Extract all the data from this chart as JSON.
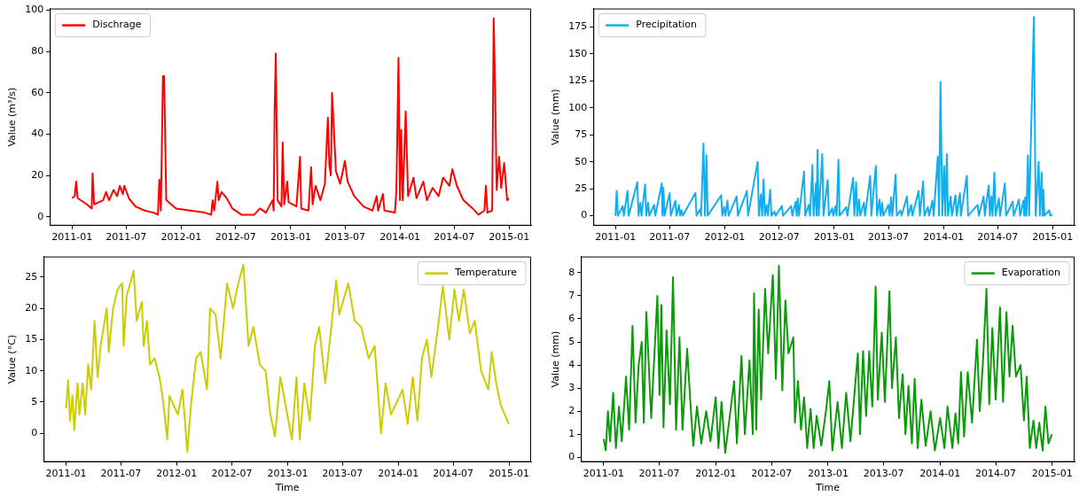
{
  "chart_data": [
    {
      "type": "line",
      "ylabel": "Value (m³/s)",
      "legend": "top left",
      "xlim": [
        "2010-10-19",
        "2015-03-15"
      ],
      "ylim": [
        -4.3,
        100.8
      ],
      "xticks": [
        "2011-01",
        "2011-07",
        "2012-01",
        "2012-07",
        "2013-01",
        "2013-07",
        "2014-01",
        "2014-07",
        "2015-01"
      ],
      "yticks": [
        0,
        20,
        40,
        60,
        80,
        100
      ],
      "x": [
        "2011-01-01",
        "2011-01-10",
        "2011-01-15",
        "2011-01-20",
        "2011-02-20",
        "2011-03-08",
        "2011-03-11",
        "2011-03-16",
        "2011-04-15",
        "2011-04-25",
        "2011-05-05",
        "2011-05-20",
        "2011-06-01",
        "2011-06-10",
        "2011-06-20",
        "2011-06-25",
        "2011-07-10",
        "2011-08-01",
        "2011-09-01",
        "2011-10-01",
        "2011-10-15",
        "2011-10-20",
        "2011-10-25",
        "2011-11-01",
        "2011-11-05",
        "2011-11-12",
        "2011-12-15",
        "2012-02-01",
        "2012-03-20",
        "2012-04-10",
        "2012-04-15",
        "2012-04-20",
        "2012-05-01",
        "2012-05-05",
        "2012-05-15",
        "2012-06-01",
        "2012-06-20",
        "2012-07-20",
        "2012-09-01",
        "2012-09-20",
        "2012-10-10",
        "2012-11-01",
        "2012-11-05",
        "2012-11-08",
        "2012-11-12",
        "2012-11-18",
        "2012-12-01",
        "2012-12-05",
        "2012-12-10",
        "2012-12-20",
        "2012-12-25",
        "2013-01-20",
        "2013-02-01",
        "2013-02-05",
        "2013-03-01",
        "2013-03-10",
        "2013-03-15",
        "2013-03-25",
        "2013-04-10",
        "2013-04-25",
        "2013-05-05",
        "2013-05-10",
        "2013-05-15",
        "2013-05-19",
        "2013-06-01",
        "2013-06-15",
        "2013-07-01",
        "2013-07-10",
        "2013-08-01",
        "2013-09-01",
        "2013-10-01",
        "2013-10-15",
        "2013-10-20",
        "2013-11-05",
        "2013-11-10",
        "2013-12-15",
        "2013-12-20",
        "2013-12-27",
        "2014-01-01",
        "2014-01-05",
        "2014-01-10",
        "2014-01-20",
        "2014-01-28",
        "2014-02-15",
        "2014-02-25",
        "2014-03-20",
        "2014-04-01",
        "2014-04-20",
        "2014-05-10",
        "2014-05-25",
        "2014-06-15",
        "2014-06-25",
        "2014-07-10",
        "2014-08-01",
        "2014-09-01",
        "2014-09-20",
        "2014-10-10",
        "2014-10-15",
        "2014-10-20",
        "2014-11-05",
        "2014-11-10",
        "2014-11-15",
        "2014-11-20",
        "2014-11-28",
        "2014-12-05",
        "2014-12-15",
        "2014-12-25",
        "2014-12-31"
      ],
      "series": [
        {
          "name": "Dischrage",
          "color": "#ff0000",
          "values": [
            9,
            10,
            17,
            9,
            6,
            4,
            21,
            6,
            8,
            12,
            8,
            13,
            10,
            15,
            11,
            15,
            9,
            5,
            3,
            2,
            1,
            18,
            3,
            68,
            68,
            8,
            4,
            3,
            2,
            1,
            8,
            3,
            17,
            8,
            12,
            9,
            4,
            1,
            1,
            4,
            2,
            8,
            3,
            51,
            79,
            8,
            5,
            36,
            6,
            17,
            7,
            5,
            29,
            4,
            3,
            24,
            6,
            15,
            8,
            16,
            48,
            25,
            20,
            60,
            22,
            16,
            27,
            17,
            10,
            5,
            3,
            10,
            3,
            11,
            3,
            2,
            13,
            77,
            8,
            42,
            8,
            51,
            10,
            19,
            9,
            17,
            8,
            14,
            10,
            19,
            15,
            23,
            15,
            8,
            4,
            1,
            3,
            15,
            2,
            3,
            96,
            61,
            13,
            29,
            14,
            26,
            8,
            9
          ]
        }
      ]
    },
    {
      "type": "line",
      "ylabel": "Value (mm)",
      "legend": "top left",
      "xlim": [
        "2010-10-19",
        "2015-03-15"
      ],
      "ylim": [
        -9.2,
        192
      ],
      "xticks": [
        "2011-01",
        "2011-07",
        "2012-01",
        "2012-07",
        "2013-01",
        "2013-07",
        "2014-01",
        "2014-07",
        "2015-01"
      ],
      "yticks": [
        0,
        25,
        50,
        75,
        100,
        125,
        150,
        175
      ],
      "x": [
        "2011-01-01",
        "2011-01-05",
        "2011-01-09",
        "2011-01-25",
        "2011-01-29",
        "2011-02-10",
        "2011-02-14",
        "2011-03-15",
        "2011-03-19",
        "2011-03-25",
        "2011-03-29",
        "2011-04-10",
        "2011-04-14",
        "2011-04-20",
        "2011-04-24",
        "2011-05-10",
        "2011-05-14",
        "2011-06-05",
        "2011-06-07",
        "2011-06-10",
        "2011-06-14",
        "2011-07-01",
        "2011-07-05",
        "2011-07-20",
        "2011-07-24",
        "2011-08-01",
        "2011-08-05",
        "2011-08-10",
        "2011-08-14",
        "2011-09-25",
        "2011-09-29",
        "2011-10-10",
        "2011-10-14",
        "2011-10-22",
        "2011-10-27",
        "2011-11-01",
        "2011-11-05",
        "2011-12-20",
        "2011-12-24",
        "2011-12-30",
        "2012-01-03",
        "2012-01-10",
        "2012-01-14",
        "2012-02-10",
        "2012-02-14",
        "2012-03-15",
        "2012-03-19",
        "2012-04-20",
        "2012-04-24",
        "2012-05-01",
        "2012-05-05",
        "2012-05-10",
        "2012-05-14",
        "2012-05-20",
        "2012-05-24",
        "2012-06-01",
        "2012-06-05",
        "2012-06-15",
        "2012-06-19",
        "2012-07-10",
        "2012-07-14",
        "2012-08-10",
        "2012-08-14",
        "2012-08-25",
        "2012-08-28",
        "2012-09-01",
        "2012-09-05",
        "2012-09-22",
        "2012-09-26",
        "2012-10-08",
        "2012-10-12",
        "2012-10-20",
        "2012-10-24",
        "2012-11-01",
        "2012-11-03",
        "2012-11-06",
        "2012-11-10",
        "2012-11-22",
        "2012-11-26",
        "2012-12-10",
        "2012-12-14",
        "2012-12-25",
        "2012-12-29",
        "2013-01-05",
        "2013-01-09",
        "2013-01-15",
        "2013-01-19",
        "2013-02-10",
        "2013-02-14",
        "2013-03-05",
        "2013-03-09",
        "2013-03-15",
        "2013-03-19",
        "2013-03-25",
        "2013-03-29",
        "2013-04-10",
        "2013-04-14",
        "2013-05-01",
        "2013-05-05",
        "2013-05-20",
        "2013-05-24",
        "2013-06-01",
        "2013-06-05",
        "2013-06-10",
        "2013-06-14",
        "2013-07-01",
        "2013-07-05",
        "2013-07-10",
        "2013-07-14",
        "2013-07-25",
        "2013-07-29",
        "2013-08-10",
        "2013-08-14",
        "2013-09-01",
        "2013-09-05",
        "2013-09-15",
        "2013-09-19",
        "2013-10-10",
        "2013-10-14",
        "2013-10-25",
        "2013-10-29",
        "2013-11-10",
        "2013-11-14",
        "2013-11-25",
        "2013-11-29",
        "2013-12-13",
        "2013-12-17",
        "2013-12-22",
        "2013-12-28",
        "2014-01-03",
        "2014-01-07",
        "2014-01-12",
        "2014-01-16",
        "2014-01-25",
        "2014-01-29",
        "2014-02-10",
        "2014-02-14",
        "2014-02-25",
        "2014-02-28",
        "2014-03-20",
        "2014-03-24",
        "2014-04-25",
        "2014-04-29",
        "2014-05-15",
        "2014-05-19",
        "2014-06-01",
        "2014-06-05",
        "2014-06-10",
        "2014-06-14",
        "2014-06-20",
        "2014-06-24",
        "2014-07-05",
        "2014-07-09",
        "2014-07-25",
        "2014-07-29",
        "2014-08-20",
        "2014-08-24",
        "2014-09-10",
        "2014-09-14",
        "2014-09-25",
        "2014-09-28",
        "2014-10-01",
        "2014-10-05",
        "2014-10-10",
        "2014-10-14",
        "2014-10-30",
        "2014-11-05",
        "2014-11-15",
        "2014-11-19",
        "2014-11-25",
        "2014-11-28",
        "2014-12-01",
        "2014-12-04",
        "2014-12-20",
        "2014-12-24",
        "2014-12-31"
      ],
      "series": [
        {
          "name": "Precipitation",
          "color": "#12aef0",
          "values": [
            0,
            23,
            0,
            9,
            0,
            23,
            0,
            31,
            0,
            12,
            0,
            29,
            0,
            12,
            0,
            10,
            0,
            30,
            0,
            26,
            0,
            21,
            0,
            14,
            0,
            10,
            0,
            5,
            0,
            21,
            0,
            6,
            0,
            67,
            0,
            56,
            0,
            19,
            0,
            8,
            0,
            14,
            0,
            18,
            0,
            23,
            0,
            50,
            0,
            20,
            0,
            34,
            0,
            10,
            0,
            24,
            0,
            4,
            0,
            9,
            0,
            9,
            0,
            13,
            0,
            16,
            0,
            41,
            0,
            10,
            0,
            47,
            0,
            30,
            0,
            61,
            0,
            57,
            0,
            33,
            0,
            7,
            0,
            9,
            0,
            52,
            0,
            8,
            0,
            35,
            0,
            31,
            0,
            15,
            0,
            12,
            0,
            37,
            0,
            46,
            0,
            15,
            0,
            12,
            0,
            10,
            0,
            17,
            0,
            38,
            0,
            5,
            0,
            18,
            0,
            10,
            0,
            23,
            0,
            32,
            0,
            8,
            0,
            14,
            0,
            55,
            0,
            124,
            0,
            46,
            0,
            57,
            0,
            18,
            0,
            19,
            0,
            21,
            0,
            37,
            0,
            10,
            0,
            18,
            0,
            28,
            0,
            18,
            0,
            40,
            0,
            16,
            0,
            30,
            0,
            13,
            0,
            15,
            0,
            14,
            0,
            17,
            0,
            56,
            0,
            184,
            0,
            50,
            0,
            40,
            0,
            24,
            0,
            5,
            0,
            1
          ]
        }
      ]
    },
    {
      "type": "line",
      "xlabel": "Time",
      "ylabel": "Value (°C)",
      "legend": "top right",
      "xlim": [
        "2010-10-19",
        "2015-03-15"
      ],
      "ylim": [
        -4.6,
        28.3
      ],
      "xticks": [
        "2011-01",
        "2011-07",
        "2012-01",
        "2012-07",
        "2013-01",
        "2013-07",
        "2014-01",
        "2014-07",
        "2015-01"
      ],
      "yticks": [
        0,
        5,
        10,
        15,
        20,
        25
      ],
      "x": [
        "2011-01-01",
        "2011-01-08",
        "2011-01-14",
        "2011-01-22",
        "2011-01-28",
        "2011-02-08",
        "2011-02-14",
        "2011-02-25",
        "2011-03-05",
        "2011-03-15",
        "2011-03-25",
        "2011-04-05",
        "2011-04-15",
        "2011-04-25",
        "2011-05-15",
        "2011-05-22",
        "2011-06-05",
        "2011-06-20",
        "2011-07-05",
        "2011-07-10",
        "2011-07-20",
        "2011-08-12",
        "2011-08-22",
        "2011-09-08",
        "2011-09-14",
        "2011-09-25",
        "2011-10-05",
        "2011-10-20",
        "2011-11-05",
        "2011-11-15",
        "2011-12-01",
        "2011-12-08",
        "2012-01-05",
        "2012-01-20",
        "2012-02-05",
        "2012-02-18",
        "2012-03-05",
        "2012-03-20",
        "2012-04-10",
        "2012-04-20",
        "2012-05-08",
        "2012-05-25",
        "2012-06-15",
        "2012-07-05",
        "2012-07-22",
        "2012-08-08",
        "2012-08-25",
        "2012-09-10",
        "2012-10-01",
        "2012-10-20",
        "2012-11-05",
        "2012-11-20",
        "2012-12-08",
        "2013-01-15",
        "2013-01-30",
        "2013-02-10",
        "2013-02-25",
        "2013-03-15",
        "2013-04-01",
        "2013-04-15",
        "2013-05-05",
        "2013-05-25",
        "2013-06-10",
        "2013-06-20",
        "2013-07-20",
        "2013-08-10",
        "2013-09-01",
        "2013-09-25",
        "2013-10-15",
        "2013-11-05",
        "2013-11-20",
        "2013-12-08",
        "2014-01-15",
        "2014-02-01",
        "2014-02-18",
        "2014-03-05",
        "2014-03-20",
        "2014-04-05",
        "2014-04-20",
        "2014-05-12",
        "2014-05-28",
        "2014-06-18",
        "2014-07-05",
        "2014-07-20",
        "2014-08-05",
        "2014-08-25",
        "2014-09-10",
        "2014-10-01",
        "2014-10-25",
        "2014-11-05",
        "2014-11-20",
        "2014-12-05",
        "2014-12-31"
      ],
      "series": [
        {
          "name": "Temperature",
          "color": "#cccc00",
          "values": [
            4,
            8.5,
            2,
            6,
            0.5,
            8,
            3,
            8,
            3,
            11,
            7,
            18,
            9,
            14,
            20,
            13,
            20,
            23,
            24,
            14,
            22,
            26,
            18,
            21,
            14,
            18,
            11,
            12,
            9,
            6,
            -1,
            6,
            3,
            7,
            -3,
            5,
            12,
            13,
            7,
            20,
            19,
            12,
            24,
            20,
            24,
            27,
            14,
            17,
            11,
            10,
            3,
            -0.5,
            9,
            -1,
            9,
            -1,
            8,
            2,
            14,
            17,
            8,
            17,
            24.5,
            19,
            24,
            18,
            17,
            12,
            14,
            0,
            8,
            3,
            7,
            1.5,
            9,
            2,
            12,
            15,
            9,
            17,
            23.5,
            15,
            23,
            18,
            23,
            16,
            18,
            10,
            7,
            13,
            8,
            4.5,
            1.5
          ]
        }
      ]
    },
    {
      "type": "line",
      "xlabel": "Time",
      "ylabel": "Value (mm)",
      "legend": "top right",
      "xlim": [
        "2010-10-19",
        "2015-03-15"
      ],
      "ylim": [
        -0.2,
        8.7
      ],
      "xticks": [
        "2011-01",
        "2011-07",
        "2012-01",
        "2012-07",
        "2013-01",
        "2013-07",
        "2014-01",
        "2014-07",
        "2015-01"
      ],
      "yticks": [
        0,
        1,
        2,
        3,
        4,
        5,
        6,
        7,
        8
      ],
      "x": [
        "2011-01-01",
        "2011-01-08",
        "2011-01-15",
        "2011-01-22",
        "2011-02-01",
        "2011-02-10",
        "2011-02-20",
        "2011-03-01",
        "2011-03-15",
        "2011-03-25",
        "2011-04-05",
        "2011-04-15",
        "2011-04-25",
        "2011-05-05",
        "2011-05-12",
        "2011-05-20",
        "2011-06-05",
        "2011-06-25",
        "2011-07-02",
        "2011-07-08",
        "2011-07-15",
        "2011-07-25",
        "2011-08-05",
        "2011-08-15",
        "2011-08-25",
        "2011-09-05",
        "2011-09-15",
        "2011-09-30",
        "2011-10-10",
        "2011-10-20",
        "2011-11-01",
        "2011-11-15",
        "2011-12-01",
        "2011-12-15",
        "2012-01-01",
        "2012-01-10",
        "2012-01-20",
        "2012-02-01",
        "2012-02-15",
        "2012-03-01",
        "2012-03-10",
        "2012-03-25",
        "2012-04-05",
        "2012-04-20",
        "2012-05-01",
        "2012-05-05",
        "2012-05-12",
        "2012-05-20",
        "2012-05-28",
        "2012-06-10",
        "2012-06-20",
        "2012-07-05",
        "2012-07-15",
        "2012-07-25",
        "2012-08-05",
        "2012-08-15",
        "2012-08-25",
        "2012-09-10",
        "2012-09-15",
        "2012-09-25",
        "2012-10-05",
        "2012-10-15",
        "2012-10-25",
        "2012-11-05",
        "2012-11-15",
        "2012-11-25",
        "2012-12-10",
        "2012-12-25",
        "2013-01-05",
        "2013-01-15",
        "2013-02-01",
        "2013-02-15",
        "2013-03-01",
        "2013-03-15",
        "2013-04-08",
        "2013-04-15",
        "2013-04-25",
        "2013-05-05",
        "2013-05-15",
        "2013-05-25",
        "2013-06-05",
        "2013-06-12",
        "2013-06-25",
        "2013-07-05",
        "2013-07-20",
        "2013-07-28",
        "2013-08-10",
        "2013-08-20",
        "2013-09-01",
        "2013-09-10",
        "2013-09-20",
        "2013-10-01",
        "2013-10-10",
        "2013-10-20",
        "2013-11-01",
        "2013-11-15",
        "2013-12-01",
        "2013-12-15",
        "2014-01-01",
        "2014-01-15",
        "2014-01-25",
        "2014-02-10",
        "2014-02-20",
        "2014-03-01",
        "2014-03-10",
        "2014-03-20",
        "2014-04-01",
        "2014-04-15",
        "2014-05-01",
        "2014-05-10",
        "2014-05-20",
        "2014-06-01",
        "2014-06-10",
        "2014-06-20",
        "2014-07-01",
        "2014-07-15",
        "2014-07-25",
        "2014-08-05",
        "2014-08-15",
        "2014-08-25",
        "2014-09-05",
        "2014-09-20",
        "2014-10-01",
        "2014-10-10",
        "2014-10-20",
        "2014-11-01",
        "2014-11-10",
        "2014-11-20",
        "2014-12-01",
        "2014-12-10",
        "2014-12-20",
        "2014-12-31"
      ],
      "series": [
        {
          "name": "Evaporation",
          "color": "#0a9a0a",
          "values": [
            0.8,
            0.3,
            2,
            0.7,
            2.8,
            0.4,
            2.2,
            0.7,
            3.5,
            1.2,
            5.7,
            1.5,
            4,
            5,
            1.5,
            6.3,
            1.7,
            7,
            2.7,
            6.6,
            1.3,
            5.5,
            2.3,
            7.8,
            1.2,
            5.2,
            1.2,
            4.7,
            2.5,
            0.5,
            2.2,
            0.6,
            2,
            0.7,
            2.6,
            0.4,
            2.4,
            0.2,
            1.7,
            3.3,
            0.6,
            4.4,
            1,
            4.2,
            1,
            7.1,
            1.2,
            6.4,
            2.5,
            7.3,
            4.5,
            7.9,
            3.4,
            8.3,
            2.9,
            6.8,
            4.5,
            5.2,
            1.5,
            3.3,
            1.2,
            2.6,
            0.4,
            2.1,
            0.4,
            1.8,
            0.5,
            2,
            3.3,
            0.3,
            2.4,
            0.4,
            2.8,
            0.7,
            4.5,
            1,
            4.6,
            1.8,
            4.6,
            2.2,
            7.4,
            2.5,
            5.4,
            2.4,
            7.2,
            3,
            5.2,
            1.7,
            3.6,
            1,
            3.1,
            0.6,
            3.4,
            0.4,
            2.5,
            0.5,
            2,
            0.3,
            1.7,
            0.4,
            2.2,
            0.4,
            1.9,
            0.6,
            3.7,
            0.9,
            3.7,
            1.5,
            5.1,
            2,
            4,
            7.3,
            2.3,
            5.6,
            2.5,
            6.5,
            2.4,
            6.3,
            3.5,
            5.7,
            3.5,
            4,
            1.6,
            3.5,
            0.4,
            1.6,
            0.4,
            1.5,
            0.3,
            2.2,
            0.6,
            1
          ]
        }
      ]
    }
  ]
}
